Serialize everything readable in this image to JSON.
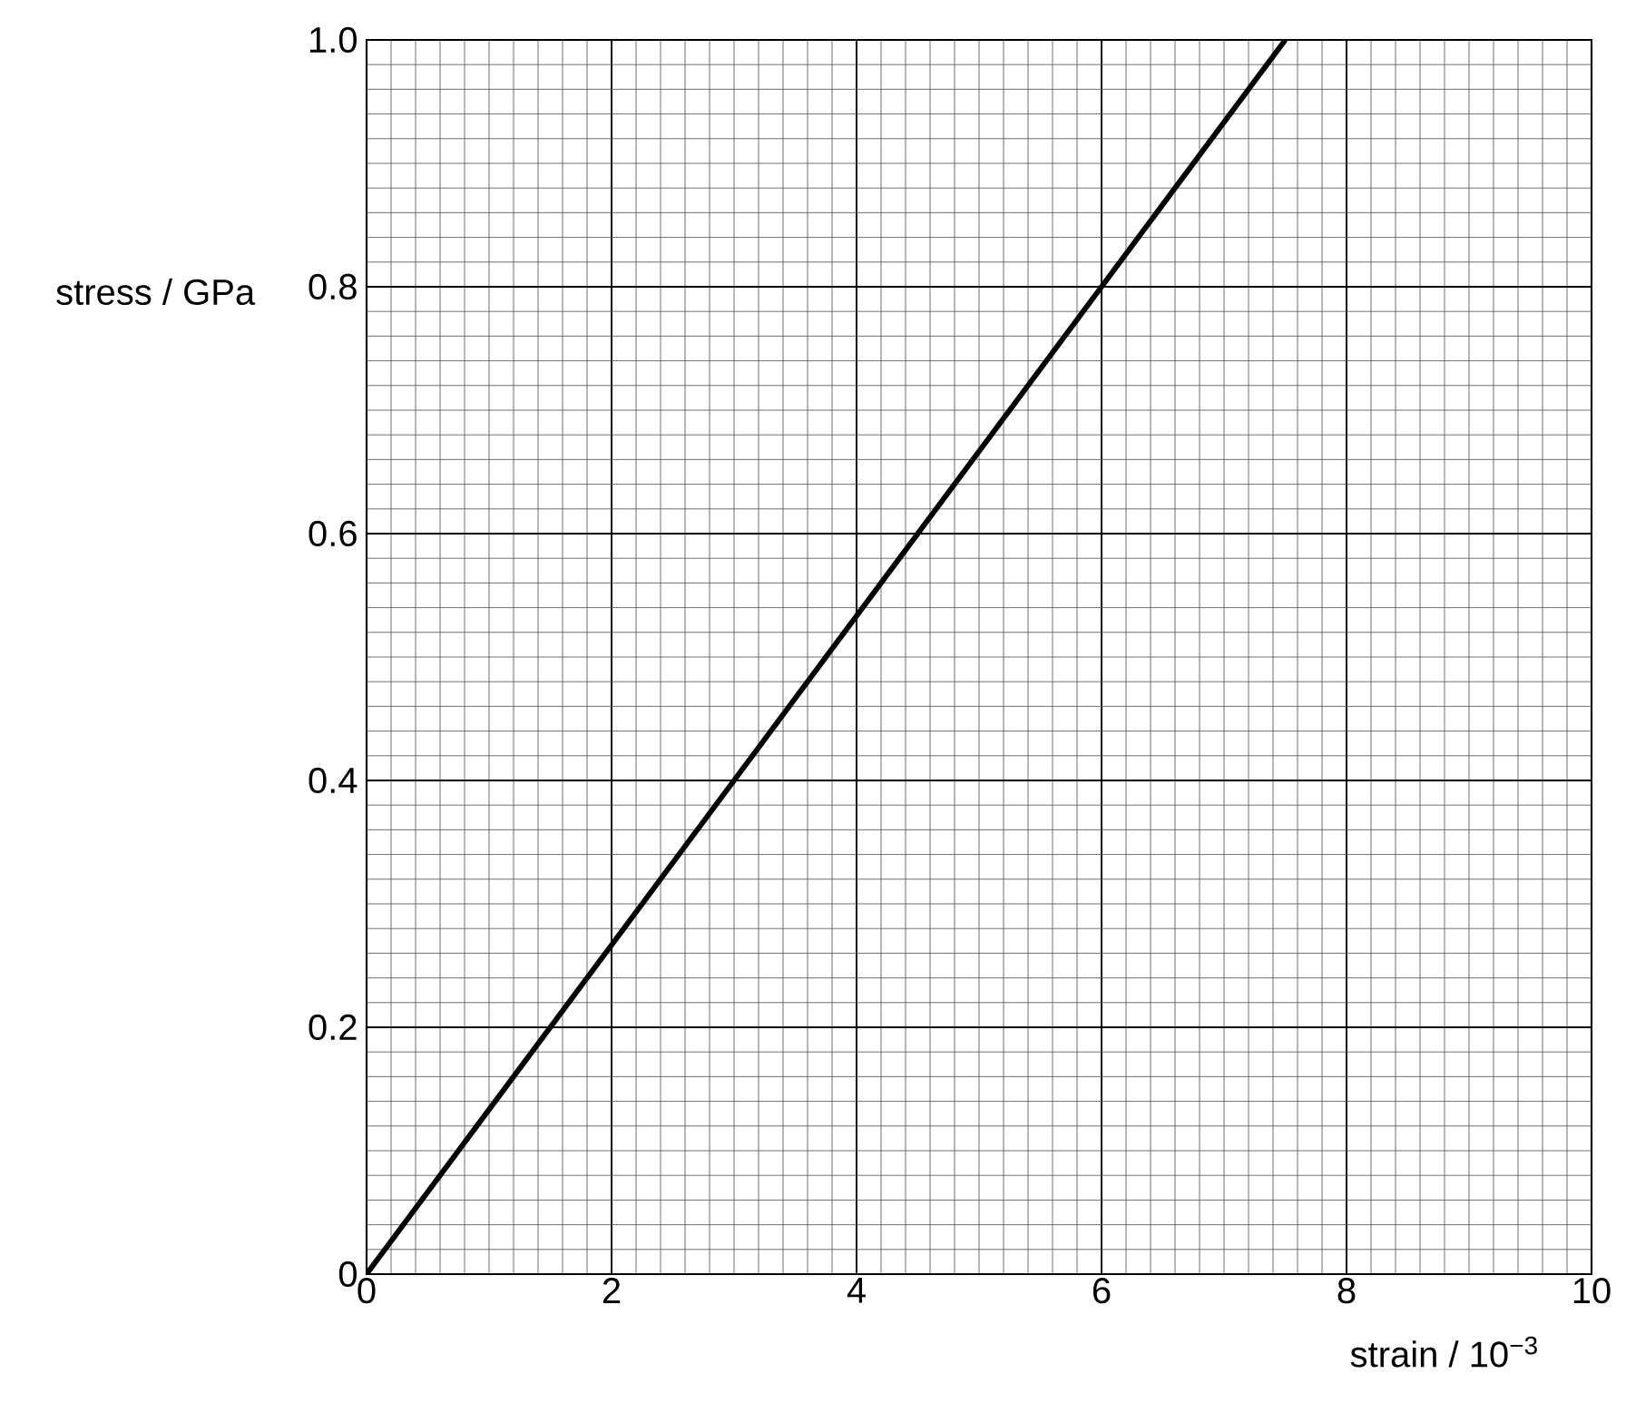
{
  "chart_data": {
    "type": "line",
    "xlabel": "strain / 10$^{−3}$",
    "ylabel": "stress / GPa",
    "x": [
      0,
      7.5
    ],
    "series": [
      {
        "color": "#000000",
        "values": [
          0,
          1.0
        ]
      }
    ],
    "xlim": [
      0,
      10
    ],
    "ylim": [
      0,
      1
    ],
    "xticks": [
      0,
      2,
      4,
      6,
      8,
      10
    ],
    "yticks": [
      0,
      0.2,
      0.4,
      0.6,
      0.8,
      {
        "value": 1,
        "label": "1.0"
      }
    ],
    "grid": true
  }
}
